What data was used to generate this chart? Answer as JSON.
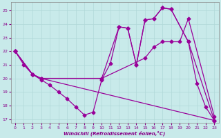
{
  "xlabel": "Windchill (Refroidissement éolien,°C)",
  "bg_color": "#c8eaea",
  "grid_color": "#b0d8d8",
  "line_color": "#990099",
  "xlim": [
    -0.5,
    23.5
  ],
  "ylim": [
    16.7,
    25.6
  ],
  "yticks": [
    17,
    18,
    19,
    20,
    21,
    22,
    23,
    24,
    25
  ],
  "xticks": [
    0,
    1,
    2,
    3,
    4,
    5,
    6,
    7,
    8,
    9,
    10,
    11,
    12,
    13,
    14,
    15,
    16,
    17,
    18,
    19,
    20,
    21,
    22,
    23
  ],
  "line1_x": [
    0,
    1,
    2,
    3,
    4,
    5,
    6,
    7,
    8,
    9,
    10,
    11,
    12,
    13,
    14,
    15,
    16,
    17,
    18,
    20,
    21,
    22,
    23
  ],
  "line1_y": [
    22,
    21,
    20.3,
    19.9,
    19.5,
    19.0,
    18.5,
    17.9,
    17.3,
    17.5,
    19.9,
    21.1,
    23.8,
    23.7,
    21.0,
    24.3,
    24.4,
    25.2,
    25.1,
    22.7,
    19.6,
    17.9,
    16.9
  ],
  "line2_x": [
    0,
    2,
    3,
    10,
    12,
    13,
    14,
    15,
    16,
    17,
    18,
    20,
    23
  ],
  "line2_y": [
    22,
    20.3,
    20.0,
    20.0,
    23.8,
    23.7,
    21.0,
    24.3,
    24.4,
    25.2,
    25.1,
    22.7,
    16.9
  ],
  "line3_x": [
    0,
    2,
    3,
    10,
    15,
    16,
    17,
    18,
    19,
    20,
    23
  ],
  "line3_y": [
    22,
    20.3,
    20.0,
    20.0,
    21.5,
    22.3,
    22.7,
    22.7,
    22.7,
    24.4,
    17.2
  ],
  "line4_x": [
    0,
    2,
    3,
    23
  ],
  "line4_y": [
    22,
    20.3,
    20.0,
    16.9
  ]
}
